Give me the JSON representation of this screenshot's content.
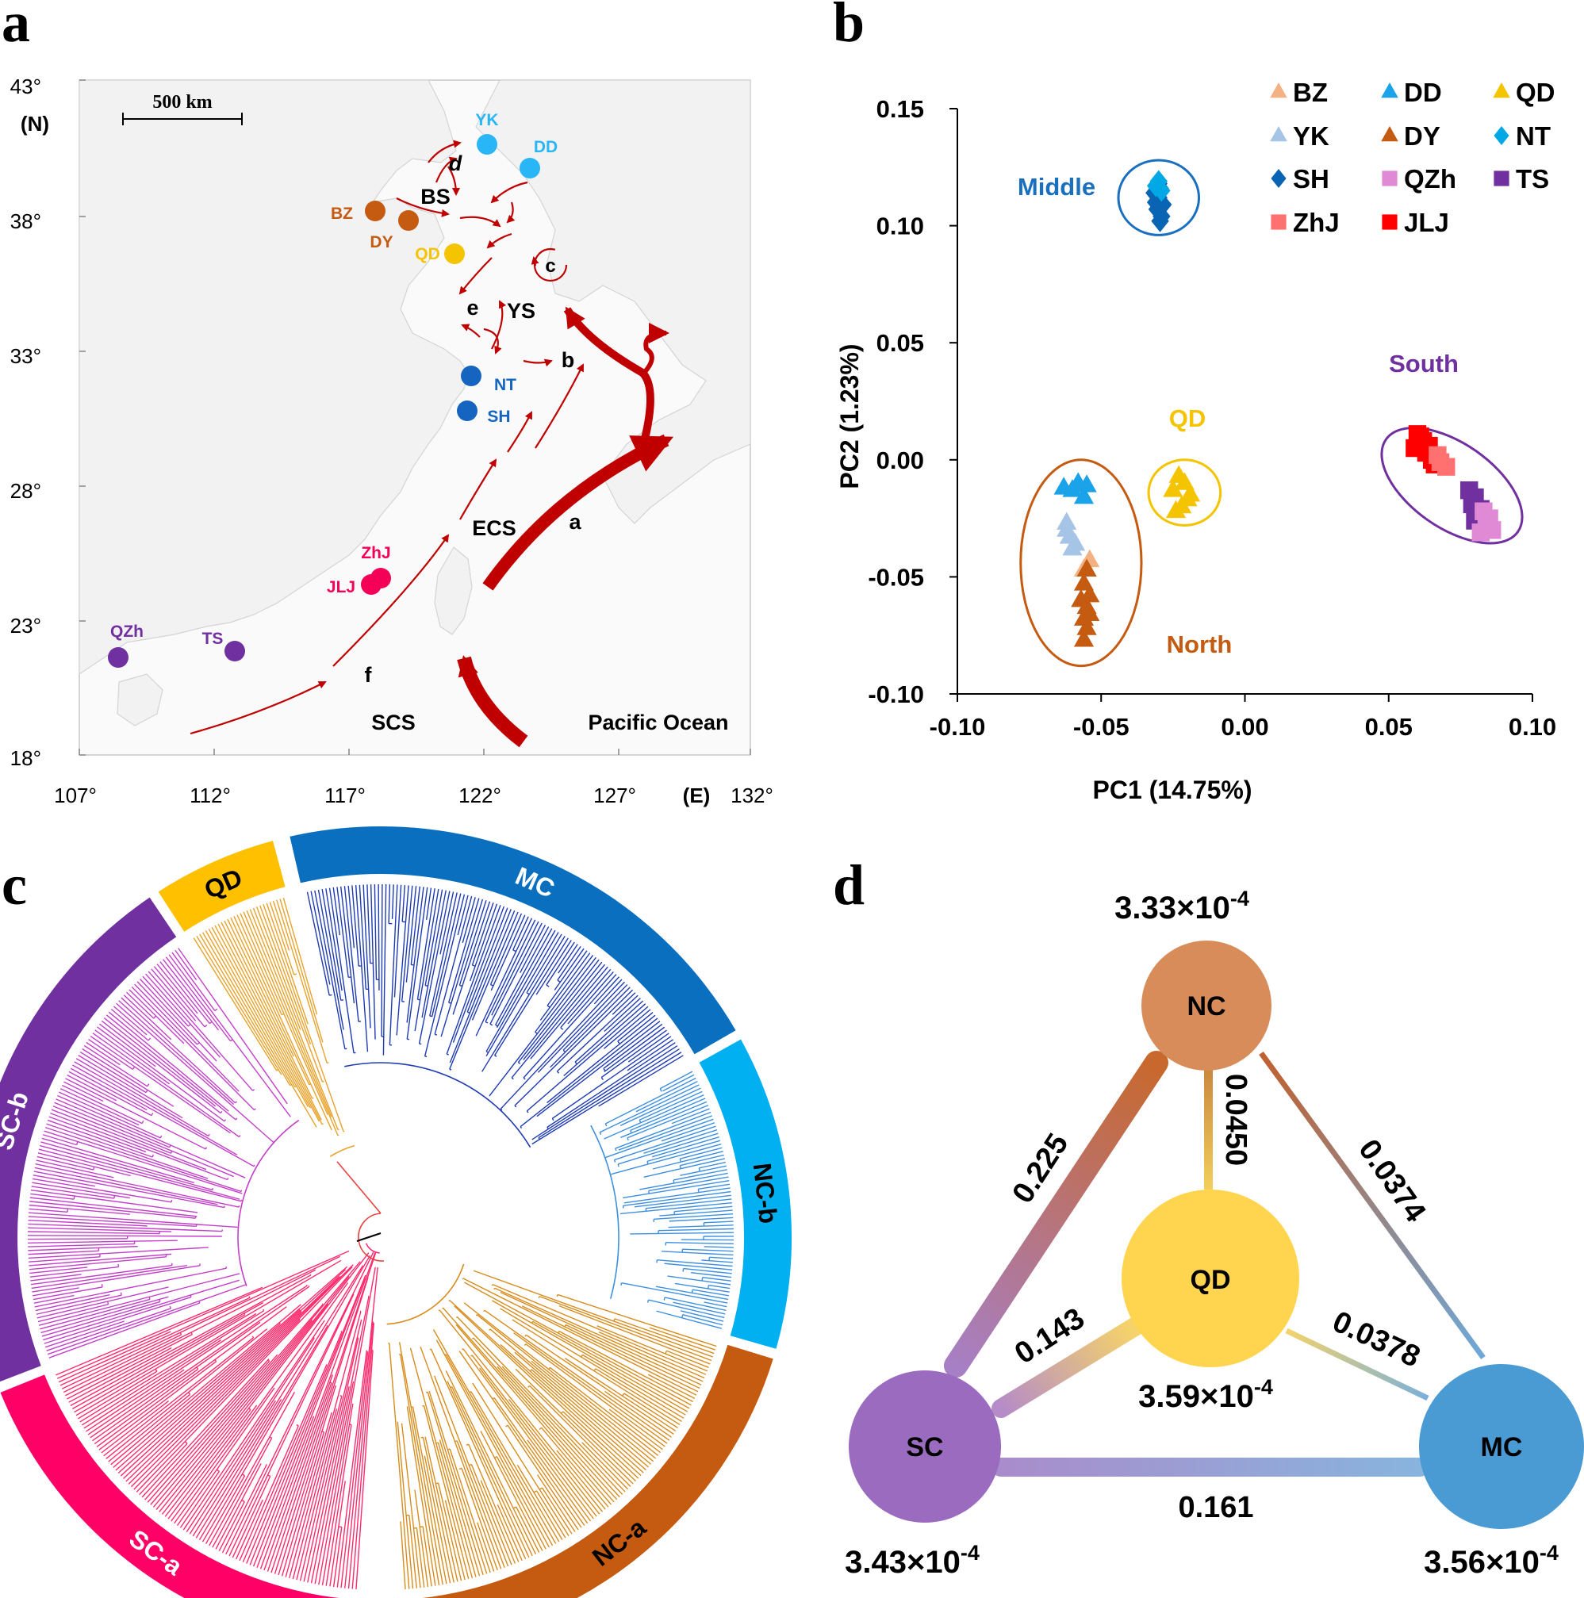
{
  "panels": {
    "a": {
      "letter": "a"
    },
    "b": {
      "letter": "b"
    },
    "c": {
      "letter": "c"
    },
    "d": {
      "letter": "d"
    }
  },
  "colors": {
    "BZ": "#f4b183",
    "DD": "#1aa3e8",
    "QD": "#f5c400",
    "YK": "#a5c4e6",
    "DY": "#c55a11",
    "NT": "#00a9e6",
    "SH": "#0a64b4",
    "QZh": "#e08ad6",
    "TS": "#7030a0",
    "ZhJ": "#ff7070",
    "JLJ": "#ff0000",
    "north": "#c55a11",
    "middle": "#1a6fbf",
    "south": "#7030a0",
    "qd": "#f5c400",
    "arrow": "#c00000"
  },
  "map": {
    "scale_label": "500 km",
    "lat_unit": "(N)",
    "lon_unit": "(E)",
    "lat_ticks": [
      "43°",
      "38°",
      "33°",
      "28°",
      "23°",
      "18°"
    ],
    "lon_ticks": [
      "107°",
      "112°",
      "117°",
      "122°",
      "127°",
      "132°"
    ],
    "sites": [
      {
        "code": "YK",
        "color": "#29b6f6"
      },
      {
        "code": "DD",
        "color": "#29b6f6"
      },
      {
        "code": "BZ",
        "color": "#c55a11"
      },
      {
        "code": "DY",
        "color": "#c55a11"
      },
      {
        "code": "QD",
        "color": "#f5c400"
      },
      {
        "code": "NT",
        "color": "#1565c0"
      },
      {
        "code": "SH",
        "color": "#1565c0"
      },
      {
        "code": "ZhJ",
        "color": "#f50057"
      },
      {
        "code": "JLJ",
        "color": "#f50057"
      },
      {
        "code": "QZh",
        "color": "#7030a0"
      },
      {
        "code": "TS",
        "color": "#7030a0"
      }
    ],
    "region_labels": [
      "BS",
      "YS",
      "ECS",
      "SCS",
      "Pacific Ocean"
    ],
    "current_labels": [
      "a",
      "b",
      "c",
      "d",
      "e",
      "f"
    ]
  },
  "chart_data": {
    "type": "scatter",
    "xlabel": "PC1 (14.75%)",
    "ylabel": "PC2 (1.23%)",
    "xlim": [
      -0.1,
      0.1
    ],
    "ylim": [
      -0.1,
      0.15
    ],
    "x_ticks": [
      "-0.10",
      "-0.05",
      "0.00",
      "0.05",
      "0.10"
    ],
    "y_ticks": [
      "0.15",
      "0.10",
      "0.05",
      "0.00",
      "-0.05",
      "-0.10"
    ],
    "legend": [
      {
        "name": "BZ",
        "marker": "triangle",
        "color": "#f4b183"
      },
      {
        "name": "DD",
        "marker": "triangle",
        "color": "#1aa3e8"
      },
      {
        "name": "QD",
        "marker": "triangle",
        "color": "#f5c400"
      },
      {
        "name": "YK",
        "marker": "triangle",
        "color": "#a5c4e6"
      },
      {
        "name": "DY",
        "marker": "triangle",
        "color": "#c55a11"
      },
      {
        "name": "NT",
        "marker": "diamond",
        "color": "#00a9e6"
      },
      {
        "name": "SH",
        "marker": "diamond",
        "color": "#0a64b4"
      },
      {
        "name": "QZh",
        "marker": "square",
        "color": "#e08ad6"
      },
      {
        "name": "TS",
        "marker": "square",
        "color": "#7030a0"
      },
      {
        "name": "ZhJ",
        "marker": "square",
        "color": "#ff7070"
      },
      {
        "name": "JLJ",
        "marker": "square",
        "color": "#ff0000"
      }
    ],
    "group_labels": [
      {
        "label": "Middle",
        "color": "#1a6fbf"
      },
      {
        "label": "QD",
        "color": "#f5c400"
      },
      {
        "label": "South",
        "color": "#7030a0"
      },
      {
        "label": "North",
        "color": "#c55a11"
      }
    ],
    "series": [
      {
        "name": "SH",
        "marker": "diamond",
        "color": "#0a64b4",
        "points": [
          [
            -0.0305,
            0.107
          ],
          [
            -0.03,
            0.112
          ],
          [
            -0.0295,
            0.116
          ],
          [
            -0.031,
            0.11
          ],
          [
            -0.029,
            0.104
          ],
          [
            -0.03,
            0.118
          ],
          [
            -0.0285,
            0.109
          ],
          [
            -0.0315,
            0.114
          ],
          [
            -0.0295,
            0.102
          ]
        ]
      },
      {
        "name": "NT",
        "marker": "diamond",
        "color": "#00a9e6",
        "points": [
          [
            -0.03,
            0.119
          ],
          [
            -0.029,
            0.115
          ],
          [
            -0.031,
            0.117
          ]
        ]
      },
      {
        "name": "DD",
        "marker": "triangle",
        "color": "#1aa3e8",
        "points": [
          [
            -0.063,
            -0.012
          ],
          [
            -0.058,
            -0.01
          ],
          [
            -0.056,
            -0.016
          ],
          [
            -0.06,
            -0.013
          ],
          [
            -0.055,
            -0.011
          ]
        ]
      },
      {
        "name": "YK",
        "marker": "triangle",
        "color": "#a5c4e6",
        "points": [
          [
            -0.062,
            -0.027
          ],
          [
            -0.061,
            -0.033
          ],
          [
            -0.06,
            -0.038
          ],
          [
            -0.062,
            -0.03
          ],
          [
            -0.059,
            -0.036
          ]
        ]
      },
      {
        "name": "BZ",
        "marker": "triangle",
        "color": "#f4b183",
        "points": [
          [
            -0.054,
            -0.043
          ],
          [
            -0.056,
            -0.047
          ]
        ]
      },
      {
        "name": "DY",
        "marker": "triangle",
        "color": "#c55a11",
        "points": [
          [
            -0.055,
            -0.047
          ],
          [
            -0.056,
            -0.053
          ],
          [
            -0.054,
            -0.058
          ],
          [
            -0.055,
            -0.063
          ],
          [
            -0.056,
            -0.068
          ],
          [
            -0.055,
            -0.072
          ],
          [
            -0.056,
            -0.077
          ],
          [
            -0.054,
            -0.066
          ],
          [
            -0.057,
            -0.06
          ]
        ]
      },
      {
        "name": "QD",
        "marker": "triangle",
        "color": "#f5c400",
        "points": [
          [
            -0.023,
            -0.007
          ],
          [
            -0.021,
            -0.01
          ],
          [
            -0.025,
            -0.013
          ],
          [
            -0.019,
            -0.015
          ],
          [
            -0.022,
            -0.02
          ],
          [
            -0.024,
            -0.022
          ],
          [
            -0.02,
            -0.017
          ]
        ]
      },
      {
        "name": "JLJ",
        "marker": "square",
        "color": "#ff0000",
        "points": [
          [
            0.06,
            0.011
          ],
          [
            0.062,
            0.008
          ],
          [
            0.059,
            0.005
          ],
          [
            0.063,
            0.003
          ],
          [
            0.065,
            0.0
          ],
          [
            0.066,
            -0.002
          ],
          [
            0.061,
            0.01
          ],
          [
            0.064,
            0.006
          ]
        ]
      },
      {
        "name": "ZhJ",
        "marker": "square",
        "color": "#ff7070",
        "points": [
          [
            0.068,
            -0.001
          ],
          [
            0.07,
            -0.003
          ],
          [
            0.067,
            0.002
          ]
        ]
      },
      {
        "name": "TS",
        "marker": "square",
        "color": "#7030a0",
        "points": [
          [
            0.078,
            -0.013
          ],
          [
            0.08,
            -0.016
          ],
          [
            0.079,
            -0.019
          ],
          [
            0.082,
            -0.021
          ],
          [
            0.081,
            -0.023
          ],
          [
            0.08,
            -0.026
          ]
        ]
      },
      {
        "name": "QZh",
        "marker": "square",
        "color": "#e08ad6",
        "points": [
          [
            0.083,
            -0.022
          ],
          [
            0.085,
            -0.025
          ],
          [
            0.084,
            -0.028
          ],
          [
            0.086,
            -0.03
          ],
          [
            0.082,
            -0.031
          ]
        ]
      }
    ],
    "ellipses": [
      {
        "group": "Middle",
        "color": "#1a6fbf",
        "cx": -0.03,
        "cy": 0.112,
        "rx": 0.014,
        "ry": 0.016
      },
      {
        "group": "QD",
        "color": "#f5c400",
        "cx": -0.021,
        "cy": -0.014,
        "rx": 0.0125,
        "ry": 0.014
      },
      {
        "group": "North",
        "color": "#c55a11",
        "cx": -0.057,
        "cy": -0.044,
        "rx": 0.021,
        "ry": 0.044
      },
      {
        "group": "South",
        "color": "#7030a0",
        "cx": 0.072,
        "cy": -0.011,
        "rx": 0.028,
        "ry": 0.018
      }
    ]
  },
  "tree": {
    "clades": [
      {
        "label": "MC",
        "color": "#0a6fbe",
        "text_color": "#ffffff"
      },
      {
        "label": "NC-b",
        "color": "#00b0f0",
        "text_color": "#000000"
      },
      {
        "label": "NC-a",
        "color": "#c55a11",
        "text_color": "#000000"
      },
      {
        "label": "SC-a",
        "color": "#ff0066",
        "text_color": "#ffffff"
      },
      {
        "label": "SC-b",
        "color": "#7030a0",
        "text_color": "#ffffff"
      },
      {
        "label": "QD",
        "color": "#ffc000",
        "text_color": "#000000"
      }
    ]
  },
  "network": {
    "nodes": [
      {
        "id": "NC",
        "label": "NC",
        "color": "#d88c5a",
        "diversity": "3.33×10",
        "exp": "-4"
      },
      {
        "id": "QD",
        "label": "QD",
        "color": "#ffd54f",
        "diversity": "3.59×10",
        "exp": "-4"
      },
      {
        "id": "SC",
        "label": "SC",
        "color": "#9b6bbf",
        "diversity": "3.43×10",
        "exp": "-4"
      },
      {
        "id": "MC",
        "label": "MC",
        "color": "#4a9ad4",
        "diversity": "3.56×10",
        "exp": "-4"
      }
    ],
    "edges": [
      {
        "from": "NC",
        "to": "SC",
        "value": "0.225"
      },
      {
        "from": "NC",
        "to": "QD",
        "value": "0.0450"
      },
      {
        "from": "NC",
        "to": "MC",
        "value": "0.0374"
      },
      {
        "from": "QD",
        "to": "SC",
        "value": "0.143"
      },
      {
        "from": "QD",
        "to": "MC",
        "value": "0.0378"
      },
      {
        "from": "SC",
        "to": "MC",
        "value": "0.161"
      }
    ]
  }
}
